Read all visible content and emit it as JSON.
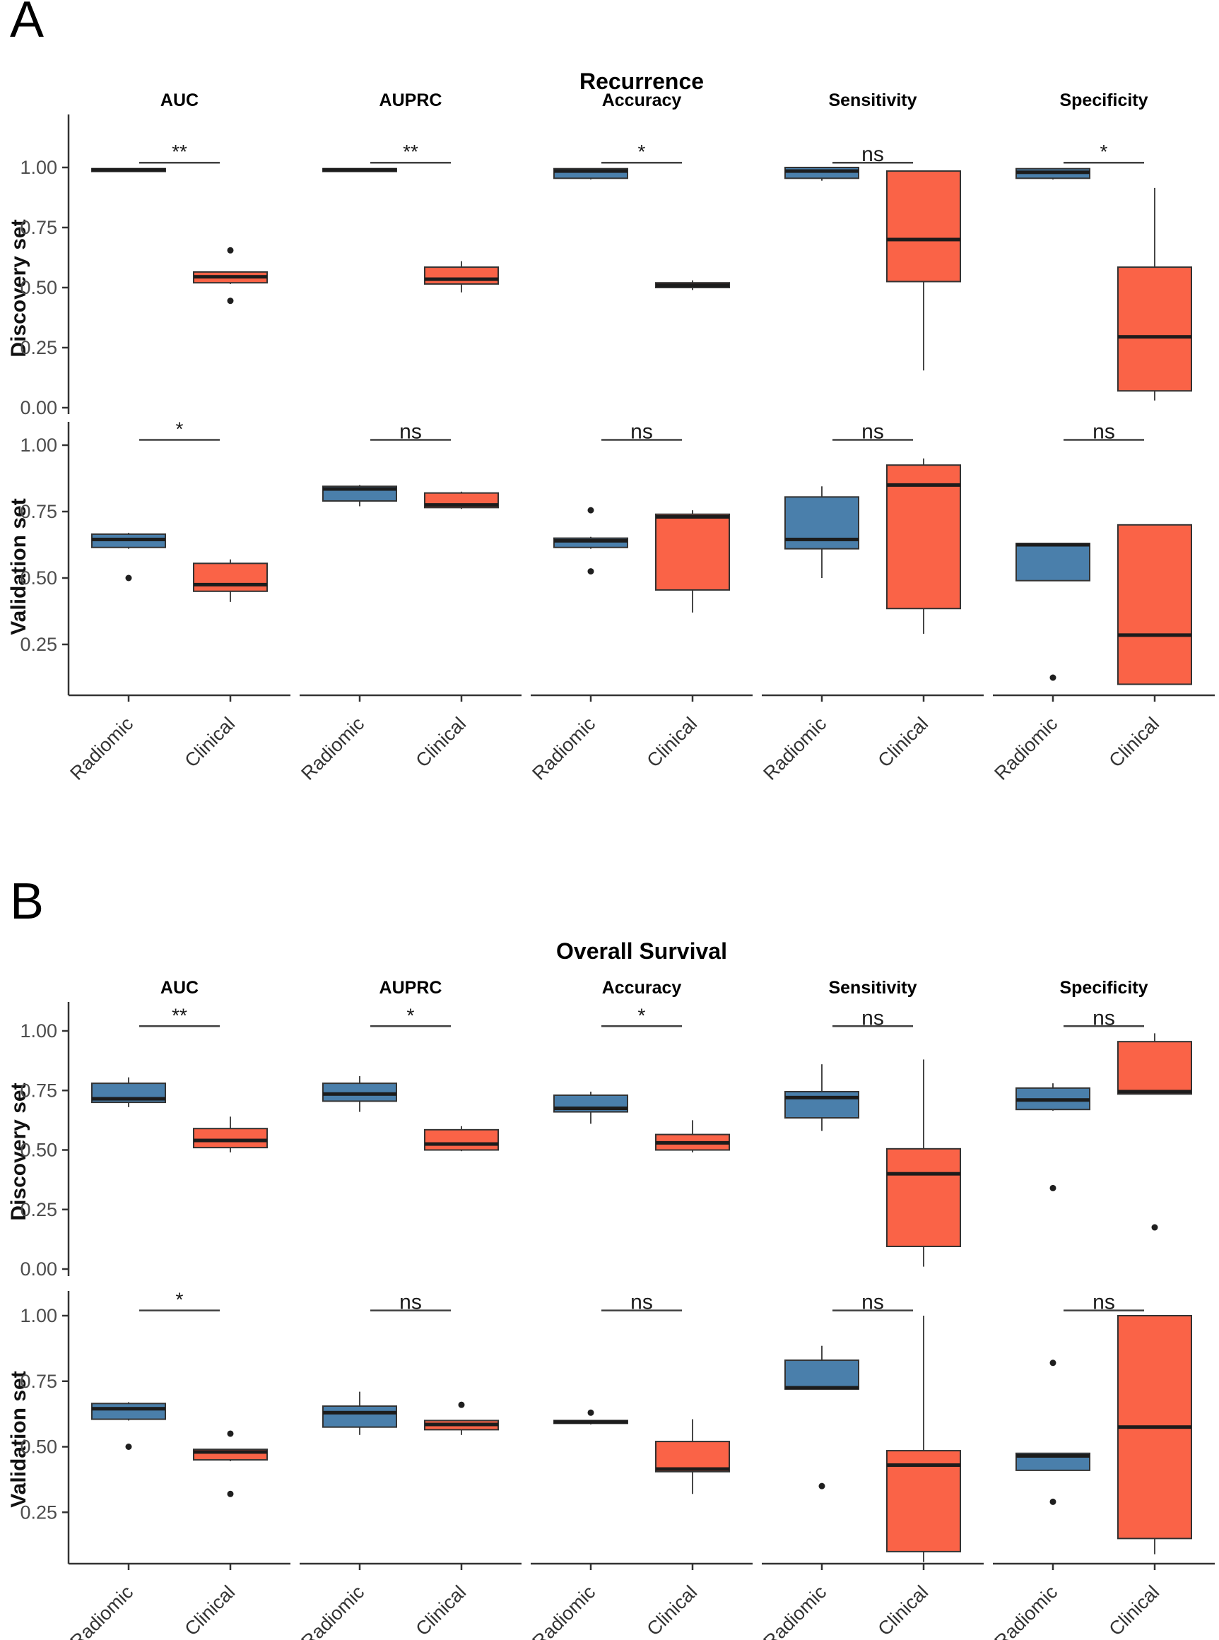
{
  "chart_data": {
    "type": "boxplot",
    "groups": [
      "Radiomic",
      "Clinical"
    ],
    "metrics": [
      "AUC",
      "AUPRC",
      "Accuracy",
      "Sensitivity",
      "Specificity"
    ],
    "legend_position": "none",
    "grid": false,
    "colors": {
      "radiomic_fill": "#4A7FAB",
      "clinical_fill": "#FA6347",
      "box_border": "#333333",
      "median": "#1C1C1C",
      "axis": "#333333",
      "tick_text": "#4D4D4D",
      "sig_bar": "#404040",
      "outlier": "#1F1F1F"
    },
    "panels": [
      {
        "label": "A",
        "title": "Recurrence",
        "rows": [
          {
            "label": "Discovery set",
            "yticks": [
              1.0,
              0.75,
              0.5,
              0.25,
              0.0
            ],
            "cells": [
              {
                "metric": "AUC",
                "sig": "**",
                "radiomic": {
                  "lo": 0.985,
                  "q1": 0.985,
                  "med": 0.99,
                  "q3": 0.995,
                  "hi": 0.995,
                  "out": []
                },
                "clinical": {
                  "lo": 0.515,
                  "q1": 0.52,
                  "med": 0.545,
                  "q3": 0.565,
                  "hi": 0.565,
                  "out": [
                    0.655,
                    0.445
                  ]
                }
              },
              {
                "metric": "AUPRC",
                "sig": "**",
                "radiomic": {
                  "lo": 0.985,
                  "q1": 0.985,
                  "med": 0.99,
                  "q3": 0.995,
                  "hi": 0.995,
                  "out": []
                },
                "clinical": {
                  "lo": 0.48,
                  "q1": 0.515,
                  "med": 0.535,
                  "q3": 0.585,
                  "hi": 0.61,
                  "out": []
                }
              },
              {
                "metric": "Accuracy",
                "sig": "*",
                "radiomic": {
                  "lo": 0.95,
                  "q1": 0.955,
                  "med": 0.985,
                  "q3": 0.995,
                  "hi": 0.995,
                  "out": []
                },
                "clinical": {
                  "lo": 0.49,
                  "q1": 0.5,
                  "med": 0.51,
                  "q3": 0.52,
                  "hi": 0.53,
                  "out": []
                }
              },
              {
                "metric": "Sensitivity",
                "sig": "ns",
                "radiomic": {
                  "lo": 0.945,
                  "q1": 0.955,
                  "med": 0.985,
                  "q3": 1.0,
                  "hi": 1.0,
                  "out": []
                },
                "clinical": {
                  "lo": 0.155,
                  "q1": 0.525,
                  "med": 0.7,
                  "q3": 0.985,
                  "hi": 0.985,
                  "out": []
                }
              },
              {
                "metric": "Specificity",
                "sig": "*",
                "radiomic": {
                  "lo": 0.95,
                  "q1": 0.955,
                  "med": 0.98,
                  "q3": 0.995,
                  "hi": 0.995,
                  "out": []
                },
                "clinical": {
                  "lo": 0.03,
                  "q1": 0.07,
                  "med": 0.295,
                  "q3": 0.585,
                  "hi": 0.915,
                  "out": []
                }
              }
            ]
          },
          {
            "label": "Validation set",
            "yticks": [
              1.0,
              0.75,
              0.5,
              0.25
            ],
            "cells": [
              {
                "metric": "AUC",
                "sig": "*",
                "radiomic": {
                  "lo": 0.61,
                  "q1": 0.615,
                  "med": 0.645,
                  "q3": 0.665,
                  "hi": 0.67,
                  "out": [
                    0.5
                  ]
                },
                "clinical": {
                  "lo": 0.41,
                  "q1": 0.45,
                  "med": 0.475,
                  "q3": 0.555,
                  "hi": 0.57,
                  "out": []
                }
              },
              {
                "metric": "AUPRC",
                "sig": "ns",
                "radiomic": {
                  "lo": 0.77,
                  "q1": 0.79,
                  "med": 0.835,
                  "q3": 0.845,
                  "hi": 0.85,
                  "out": []
                },
                "clinical": {
                  "lo": 0.76,
                  "q1": 0.765,
                  "med": 0.775,
                  "q3": 0.82,
                  "hi": 0.825,
                  "out": []
                }
              },
              {
                "metric": "Accuracy",
                "sig": "ns",
                "radiomic": {
                  "lo": 0.61,
                  "q1": 0.615,
                  "med": 0.64,
                  "q3": 0.65,
                  "hi": 0.655,
                  "out": [
                    0.755,
                    0.525
                  ]
                },
                "clinical": {
                  "lo": 0.37,
                  "q1": 0.455,
                  "med": 0.73,
                  "q3": 0.74,
                  "hi": 0.755,
                  "out": []
                }
              },
              {
                "metric": "Sensitivity",
                "sig": "ns",
                "radiomic": {
                  "lo": 0.5,
                  "q1": 0.61,
                  "med": 0.645,
                  "q3": 0.805,
                  "hi": 0.845,
                  "out": []
                },
                "clinical": {
                  "lo": 0.29,
                  "q1": 0.385,
                  "med": 0.85,
                  "q3": 0.925,
                  "hi": 0.95,
                  "out": []
                }
              },
              {
                "metric": "Specificity",
                "sig": "ns",
                "radiomic": {
                  "lo": 0.49,
                  "q1": 0.49,
                  "med": 0.625,
                  "q3": 0.63,
                  "hi": 0.63,
                  "out": [
                    0.125
                  ]
                },
                "clinical": {
                  "lo": 0.1,
                  "q1": 0.1,
                  "med": 0.285,
                  "q3": 0.7,
                  "hi": 0.7,
                  "out": []
                }
              }
            ]
          }
        ]
      },
      {
        "label": "B",
        "title": "Overall Survival",
        "rows": [
          {
            "label": "Discovery set",
            "yticks": [
              1.0,
              0.75,
              0.5,
              0.25,
              0.0
            ],
            "cells": [
              {
                "metric": "AUC",
                "sig": "**",
                "radiomic": {
                  "lo": 0.68,
                  "q1": 0.7,
                  "med": 0.715,
                  "q3": 0.78,
                  "hi": 0.805,
                  "out": []
                },
                "clinical": {
                  "lo": 0.49,
                  "q1": 0.51,
                  "med": 0.54,
                  "q3": 0.59,
                  "hi": 0.64,
                  "out": []
                }
              },
              {
                "metric": "AUPRC",
                "sig": "*",
                "radiomic": {
                  "lo": 0.66,
                  "q1": 0.705,
                  "med": 0.735,
                  "q3": 0.78,
                  "hi": 0.81,
                  "out": []
                },
                "clinical": {
                  "lo": 0.495,
                  "q1": 0.5,
                  "med": 0.525,
                  "q3": 0.585,
                  "hi": 0.6,
                  "out": []
                }
              },
              {
                "metric": "Accuracy",
                "sig": "*",
                "radiomic": {
                  "lo": 0.61,
                  "q1": 0.66,
                  "med": 0.675,
                  "q3": 0.73,
                  "hi": 0.745,
                  "out": []
                },
                "clinical": {
                  "lo": 0.49,
                  "q1": 0.5,
                  "med": 0.53,
                  "q3": 0.565,
                  "hi": 0.625,
                  "out": []
                }
              },
              {
                "metric": "Sensitivity",
                "sig": "ns",
                "radiomic": {
                  "lo": 0.58,
                  "q1": 0.635,
                  "med": 0.72,
                  "q3": 0.745,
                  "hi": 0.86,
                  "out": []
                },
                "clinical": {
                  "lo": 0.01,
                  "q1": 0.095,
                  "med": 0.4,
                  "q3": 0.505,
                  "hi": 0.88,
                  "out": []
                }
              },
              {
                "metric": "Specificity",
                "sig": "ns",
                "radiomic": {
                  "lo": 0.665,
                  "q1": 0.67,
                  "med": 0.71,
                  "q3": 0.76,
                  "hi": 0.78,
                  "out": [
                    0.34
                  ]
                },
                "clinical": {
                  "lo": 0.735,
                  "q1": 0.735,
                  "med": 0.745,
                  "q3": 0.955,
                  "hi": 0.99,
                  "out": [
                    0.175
                  ]
                }
              }
            ]
          },
          {
            "label": "Validation set",
            "yticks": [
              1.0,
              0.75,
              0.5,
              0.25
            ],
            "cells": [
              {
                "metric": "AUC",
                "sig": "*",
                "radiomic": {
                  "lo": 0.6,
                  "q1": 0.605,
                  "med": 0.645,
                  "q3": 0.665,
                  "hi": 0.67,
                  "out": [
                    0.5
                  ]
                },
                "clinical": {
                  "lo": 0.445,
                  "q1": 0.45,
                  "med": 0.48,
                  "q3": 0.49,
                  "hi": 0.49,
                  "out": [
                    0.55,
                    0.32
                  ]
                }
              },
              {
                "metric": "AUPRC",
                "sig": "ns",
                "radiomic": {
                  "lo": 0.545,
                  "q1": 0.575,
                  "med": 0.63,
                  "q3": 0.655,
                  "hi": 0.71,
                  "out": []
                },
                "clinical": {
                  "lo": 0.545,
                  "q1": 0.565,
                  "med": 0.585,
                  "q3": 0.6,
                  "hi": 0.6,
                  "out": [
                    0.66
                  ]
                }
              },
              {
                "metric": "Accuracy",
                "sig": "ns",
                "radiomic": {
                  "lo": 0.585,
                  "q1": 0.59,
                  "med": 0.595,
                  "q3": 0.6,
                  "hi": 0.6,
                  "out": [
                    0.63
                  ]
                },
                "clinical": {
                  "lo": 0.32,
                  "q1": 0.405,
                  "med": 0.415,
                  "q3": 0.52,
                  "hi": 0.605,
                  "out": []
                }
              },
              {
                "metric": "Sensitivity",
                "sig": "ns",
                "radiomic": {
                  "lo": 0.72,
                  "q1": 0.72,
                  "med": 0.725,
                  "q3": 0.83,
                  "hi": 0.885,
                  "out": [
                    0.35
                  ]
                },
                "clinical": {
                  "lo": 0.06,
                  "q1": 0.1,
                  "med": 0.43,
                  "q3": 0.485,
                  "hi": 1.0,
                  "out": []
                }
              },
              {
                "metric": "Specificity",
                "sig": "ns",
                "radiomic": {
                  "lo": 0.41,
                  "q1": 0.41,
                  "med": 0.465,
                  "q3": 0.475,
                  "hi": 0.475,
                  "out": [
                    0.82,
                    0.29
                  ]
                },
                "clinical": {
                  "lo": 0.09,
                  "q1": 0.15,
                  "med": 0.575,
                  "q3": 1.0,
                  "hi": 1.0,
                  "out": []
                }
              }
            ]
          }
        ]
      }
    ]
  }
}
